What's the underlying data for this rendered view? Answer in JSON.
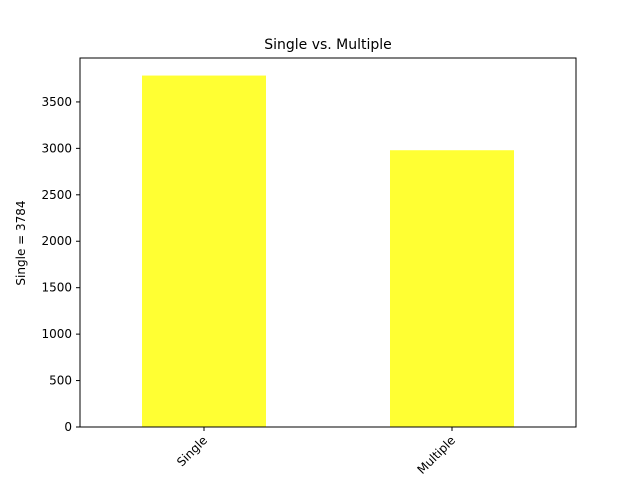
{
  "chart_data": {
    "type": "bar",
    "title": "Single vs. Multiple",
    "xlabel": "",
    "ylabel": "Single = 3784",
    "categories": [
      "Single",
      "Multiple"
    ],
    "values": [
      3784,
      2980
    ],
    "ylim": [
      0,
      3973
    ],
    "yticks": [
      0,
      500,
      1000,
      1500,
      2000,
      2500,
      3000,
      3500
    ],
    "bar_color": "#ffff33",
    "grid": false,
    "legend": "none",
    "xtick_rotation": 45
  }
}
